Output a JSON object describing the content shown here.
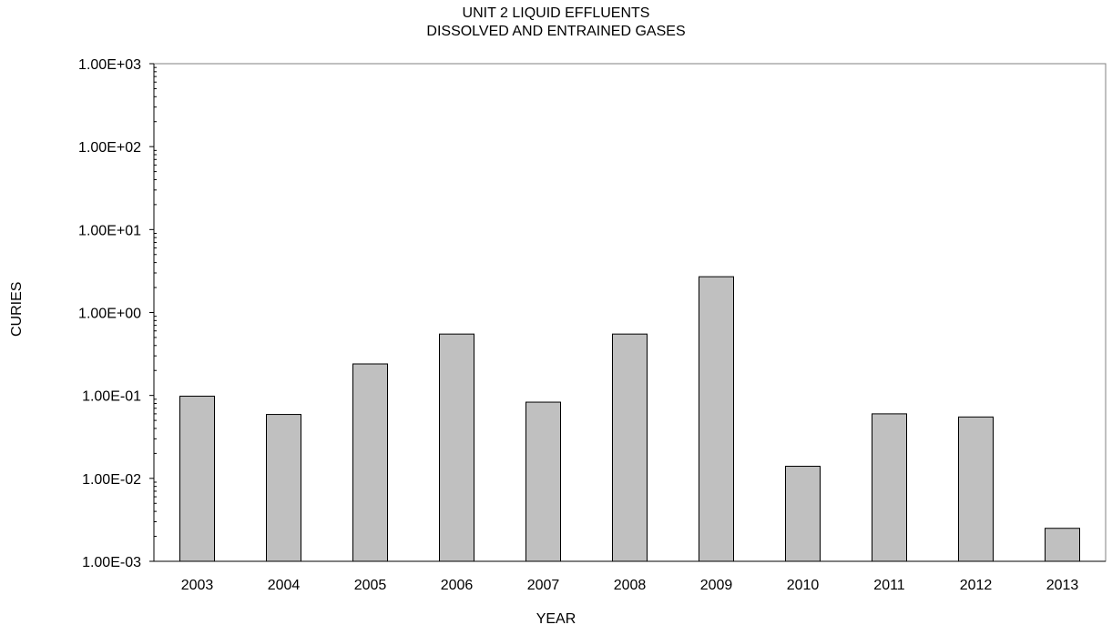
{
  "chart_data": {
    "type": "bar",
    "title": [
      "UNIT 2 LIQUID EFFLUENTS",
      "DISSOLVED AND ENTRAINED GASES"
    ],
    "xlabel": "YEAR",
    "ylabel": "CURIES",
    "yscale": "log",
    "ylim": [
      0.001,
      1000
    ],
    "ytick_labels": [
      "1.00E-03",
      "1.00E-02",
      "1.00E-01",
      "1.00E+00",
      "1.00E+01",
      "1.00E+02",
      "1.00E+03"
    ],
    "categories": [
      "2003",
      "2004",
      "2005",
      "2006",
      "2007",
      "2008",
      "2009",
      "2010",
      "2011",
      "2012",
      "2013"
    ],
    "values": [
      0.098,
      0.059,
      0.24,
      0.55,
      0.083,
      0.55,
      2.7,
      0.014,
      0.06,
      0.055,
      0.0025
    ],
    "bar_color": "#c0c0c0",
    "grid": false,
    "legend": "none"
  }
}
